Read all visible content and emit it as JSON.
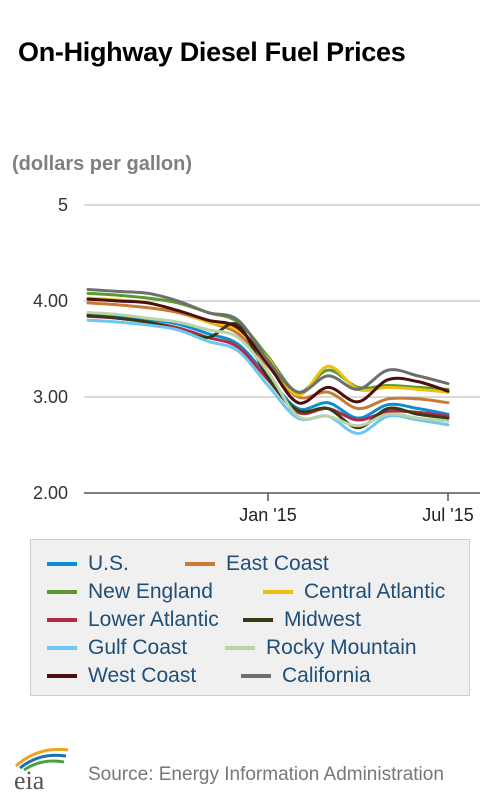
{
  "title": "On-Highway Diesel Fuel Prices",
  "unit_label": "(dollars per gallon)",
  "source": "Source: Energy Information Administration",
  "logo": {
    "text": "eia",
    "icon": "eia-logo"
  },
  "chart_data": {
    "type": "line",
    "title": "On-Highway Diesel Fuel Prices",
    "ylabel": "(dollars per gallon)",
    "xlabel": "",
    "ylim": [
      2.0,
      5.0
    ],
    "y_ticks": [
      "2.00",
      "3.00",
      "4.00",
      "5"
    ],
    "x_ticks": [
      "Jan '15",
      "Jul '15"
    ],
    "x": [
      "Jul '14",
      "Aug '14",
      "Sep '14",
      "Oct '14",
      "Nov '14",
      "Dec '14",
      "Jan '15",
      "Feb '15",
      "Mar '15",
      "Apr '15",
      "May '15",
      "Jun '15",
      "Jul '15"
    ],
    "grid": true,
    "legend_position": "bottom",
    "series": [
      {
        "name": "U.S.",
        "color": "#0a8fd0",
        "values": [
          3.87,
          3.85,
          3.81,
          3.76,
          3.66,
          3.55,
          3.21,
          2.88,
          2.94,
          2.78,
          2.92,
          2.88,
          2.82
        ]
      },
      {
        "name": "East Coast",
        "color": "#c87a34",
        "values": [
          3.98,
          3.96,
          3.93,
          3.88,
          3.78,
          3.66,
          3.32,
          3.0,
          3.05,
          2.88,
          2.98,
          2.98,
          2.94
        ]
      },
      {
        "name": "New England",
        "color": "#5a9a2a",
        "values": [
          4.08,
          4.06,
          4.03,
          3.98,
          3.88,
          3.78,
          3.42,
          3.05,
          3.28,
          3.1,
          3.12,
          3.1,
          3.08
        ]
      },
      {
        "name": "Central Atlantic",
        "color": "#f0c010",
        "values": [
          4.03,
          4.01,
          3.98,
          3.9,
          3.78,
          3.7,
          3.4,
          3.02,
          3.32,
          3.08,
          3.1,
          3.08,
          3.05
        ]
      },
      {
        "name": "Lower Atlantic",
        "color": "#b02a4a",
        "values": [
          3.84,
          3.82,
          3.78,
          3.72,
          3.62,
          3.52,
          3.18,
          2.84,
          2.88,
          2.76,
          2.85,
          2.84,
          2.8
        ]
      },
      {
        "name": "Midwest",
        "color": "#3a3a14",
        "values": [
          3.85,
          3.82,
          3.78,
          3.7,
          3.62,
          3.75,
          3.2,
          2.86,
          2.88,
          2.68,
          2.88,
          2.82,
          2.78
        ]
      },
      {
        "name": "Gulf Coast",
        "color": "#6cc8f0",
        "values": [
          3.8,
          3.78,
          3.75,
          3.7,
          3.58,
          3.48,
          3.12,
          2.78,
          2.8,
          2.62,
          2.8,
          2.76,
          2.71
        ]
      },
      {
        "name": "Rocky Mountain",
        "color": "#b8d4a8",
        "values": [
          3.88,
          3.86,
          3.82,
          3.78,
          3.7,
          3.62,
          3.26,
          2.8,
          2.8,
          2.7,
          2.82,
          2.78,
          2.75
        ]
      },
      {
        "name": "West Coast",
        "color": "#4a0f0f",
        "values": [
          4.02,
          4.0,
          3.98,
          3.9,
          3.8,
          3.72,
          3.34,
          2.94,
          3.1,
          2.95,
          3.18,
          3.16,
          3.06
        ]
      },
      {
        "name": "California",
        "color": "#6e6e6e",
        "values": [
          4.12,
          4.1,
          4.08,
          4.0,
          3.88,
          3.8,
          3.38,
          3.05,
          3.22,
          3.08,
          3.28,
          3.22,
          3.14
        ]
      }
    ]
  }
}
